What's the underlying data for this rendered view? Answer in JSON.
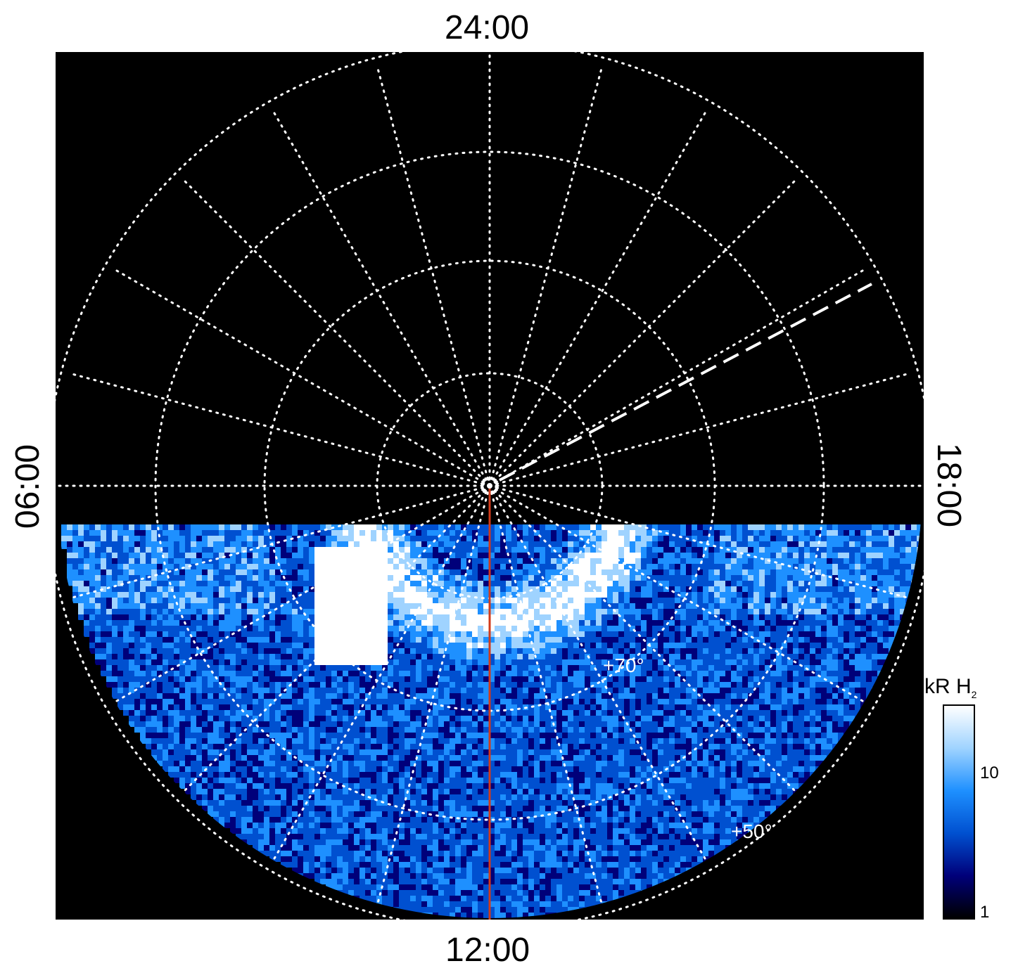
{
  "labels": {
    "top": "24:00",
    "bottom": "12:00",
    "left": "06:00",
    "right": "18:00"
  },
  "lat_labels": [
    "+70°",
    "+50°"
  ],
  "colorbar": {
    "title": "kR H",
    "title_sub": "2",
    "tick_high": "10",
    "tick_low": "1",
    "colors": [
      "#000000",
      "#00007a",
      "#0050d0",
      "#1e90ff",
      "#9fd3ff",
      "#ffffff"
    ]
  },
  "colors": {
    "grid": "#ffffff",
    "meridian_line": "#d23a1a",
    "background": "#000000"
  }
}
